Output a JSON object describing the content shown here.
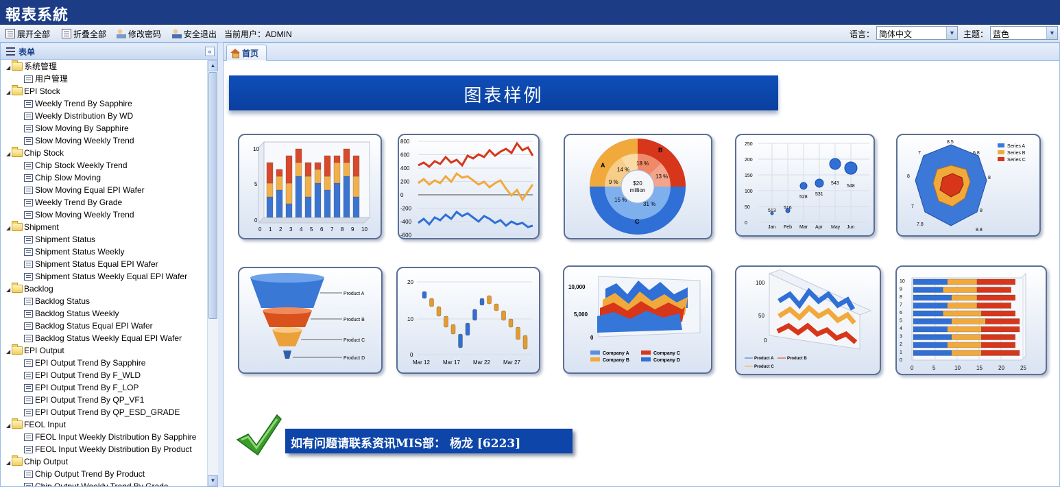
{
  "app": {
    "title": "報表系統"
  },
  "toolbar": {
    "expand_all": "展开全部",
    "collapse_all": "折叠全部",
    "change_password": "修改密码",
    "logout": "安全退出",
    "current_user": "当前用户：ADMIN",
    "language_label": "语言：",
    "language_value": "简体中文",
    "theme_label": "主题：",
    "theme_value": "蓝色"
  },
  "sidebar": {
    "title": "表单",
    "groups": [
      {
        "label": "系统管理",
        "items": [
          "用户管理"
        ]
      },
      {
        "label": "EPI Stock",
        "items": [
          "Weekly Trend By Sapphire",
          "Weekly Distribution By WD",
          "Slow Moving By Sapphire",
          "Slow Moving Weekly Trend"
        ]
      },
      {
        "label": "Chip Stock",
        "items": [
          "Chip Stock Weekly Trend",
          "Chip Slow Moving",
          "Slow Moving Equal EPI Wafer",
          "Weekly Trend By Grade",
          "Slow Moving Weekly Trend"
        ]
      },
      {
        "label": "Shipment",
        "items": [
          "Shipment Status",
          "Shipment Status Weekly",
          "Shipment Status Equal EPI Wafer",
          "Shipment Status Weekly Equal EPI Wafer"
        ]
      },
      {
        "label": "Backlog",
        "items": [
          "Backlog Status",
          "Backlog Status Weekly",
          "Backlog Status Equal EPI Wafer",
          "Backlog Status Weekly Equal EPI Wafer"
        ]
      },
      {
        "label": "EPI Output",
        "items": [
          "EPI Output Trend By Sapphire",
          "EPI Output Trend By F_WLD",
          "EPI Output Trend By F_LOP",
          "EPI Output Trend By QP_VF1",
          "EPI Output Trend By QP_ESD_GRADE"
        ]
      },
      {
        "label": "FEOL Input",
        "items": [
          "FEOL Input Weekly Distribution By Sapphire",
          "FEOL Input Weekly Distribution By Product"
        ]
      },
      {
        "label": "Chip Output",
        "items": [
          "Chip Output Trend By Product",
          "Chip Output Weekly Trend By Grade"
        ]
      }
    ]
  },
  "main": {
    "tab_label": "首页",
    "banner_title": "图表样例",
    "contact": "如有问题请联系资讯MIS部： 杨龙 [6223]"
  },
  "samples": {
    "bar3d": {
      "y_ticks": [
        "10",
        "5",
        "0"
      ],
      "x_ticks": [
        "0",
        "1",
        "2",
        "3",
        "4",
        "5",
        "6",
        "7",
        "8",
        "9",
        "10"
      ]
    },
    "line": {
      "y_ticks": [
        "800",
        "600",
        "400",
        "200",
        "0",
        "-200",
        "-400",
        "-600"
      ]
    },
    "donut": {
      "center": "$20 million",
      "outer": [
        "A",
        "B",
        "C"
      ],
      "inner": [
        "14 %",
        "18 %",
        "13 %",
        "9 %",
        "15 %",
        "31 %"
      ]
    },
    "bubble": {
      "y_ticks": [
        "250",
        "200",
        "150",
        "100",
        "50",
        "0"
      ],
      "x_ticks": [
        "Jan",
        "Feb",
        "Mar",
        "Apr",
        "May",
        "Jun"
      ],
      "labels": [
        "513",
        "516",
        "528",
        "531",
        "543",
        "548"
      ]
    },
    "radar": {
      "labels": [
        "8.5",
        "6.8",
        "8",
        "8",
        "8.8",
        "7.8",
        "7",
        "8",
        "7"
      ],
      "legend": [
        "Series A",
        "Series B",
        "Series C"
      ]
    },
    "funnel": {
      "labels": [
        "Product A",
        "Product B",
        "Product C",
        "Product D"
      ]
    },
    "candle": {
      "y_ticks": [
        "20",
        "10",
        "0"
      ],
      "x_ticks": [
        "Mar 12",
        "Mar 17",
        "Mar 22",
        "Mar 27"
      ]
    },
    "area3d": {
      "y_ticks": [
        "10,000",
        "5,000",
        "0"
      ],
      "legend": [
        "Company A",
        "Company B",
        "Company C",
        "Company D"
      ]
    },
    "ribbon": {
      "y_ticks": [
        "100",
        "50",
        "0"
      ],
      "legend": [
        "Product A",
        "Product B",
        "Product C"
      ]
    },
    "hbar": {
      "y_ticks": [
        "10",
        "9",
        "8",
        "7",
        "6",
        "5",
        "4",
        "3",
        "2",
        "1",
        "0"
      ],
      "x_ticks": [
        "0",
        "5",
        "10",
        "15",
        "20",
        "25"
      ]
    }
  },
  "colors": {
    "title_bar": "#1c3c86",
    "banner": "#0f4fb8",
    "series_blue": "#2f6fd6",
    "series_orange": "#f2a93b",
    "series_red": "#d7361b"
  }
}
